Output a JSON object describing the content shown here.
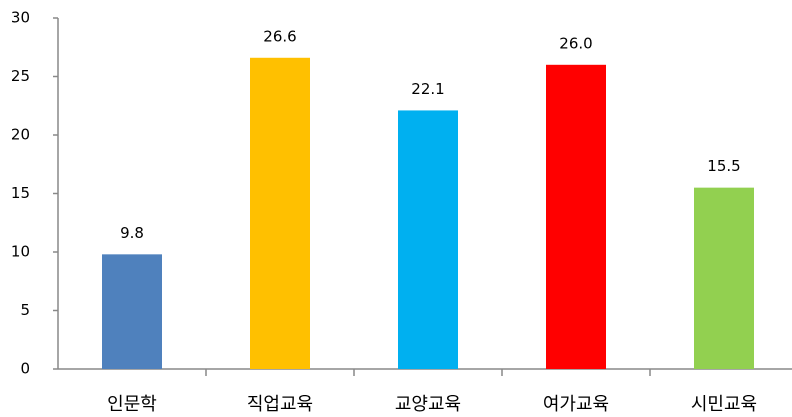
{
  "chart_data": {
    "type": "bar",
    "categories": [
      "인문학",
      "직업교육",
      "교양교육",
      "여가교육",
      "시민교육"
    ],
    "values": [
      9.8,
      26.6,
      22.1,
      26,
      15.5
    ],
    "value_labels": [
      "9.8",
      "26.6",
      "22.1",
      "26.0",
      "15.5"
    ],
    "colors": [
      "#4f81bd",
      "#ffc000",
      "#00b0f0",
      "#ff0000",
      "#92d050"
    ],
    "ylim": [
      0,
      30
    ],
    "yticks": [
      0,
      5,
      10,
      15,
      20,
      25,
      30
    ],
    "grid": false
  }
}
